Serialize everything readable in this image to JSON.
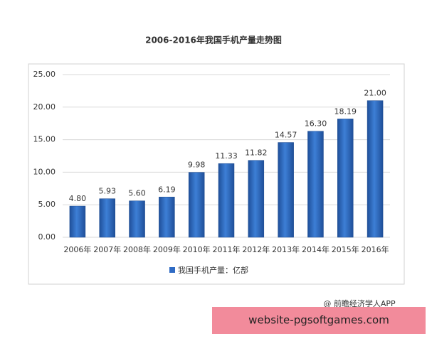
{
  "chart_data": {
    "type": "bar",
    "title": "2006-2016年我国手机产量走势图",
    "categories": [
      "2006年",
      "2007年",
      "2008年",
      "2009年",
      "2010年",
      "2011年",
      "2012年",
      "2013年",
      "2014年",
      "2015年",
      "2016年"
    ],
    "series": [
      {
        "name": "我国手机产量：亿部",
        "color": "#2f6bc4",
        "values": [
          4.8,
          5.93,
          5.6,
          6.19,
          9.98,
          11.33,
          11.82,
          14.57,
          16.3,
          18.19,
          21
        ],
        "value_labels": [
          "4.80",
          "5.93",
          "5.60",
          "6.19",
          "9.98",
          "11.33",
          "11.82",
          "14.57",
          "16.30",
          "18.19",
          "21.00"
        ]
      }
    ],
    "ylim": [
      0,
      25
    ],
    "yticks": [
      {
        "value": 0,
        "label": "0.00"
      },
      {
        "value": 5,
        "label": "5.00"
      },
      {
        "value": 10,
        "label": "10.00"
      },
      {
        "value": 15,
        "label": "15.00"
      },
      {
        "value": 20,
        "label": "20.00"
      },
      {
        "value": 25,
        "label": "25.00"
      }
    ],
    "grid": true,
    "legend": "bottom",
    "source": "@ 前瞻经济学人APP",
    "watermark": "website-pgsoftgames.com"
  }
}
